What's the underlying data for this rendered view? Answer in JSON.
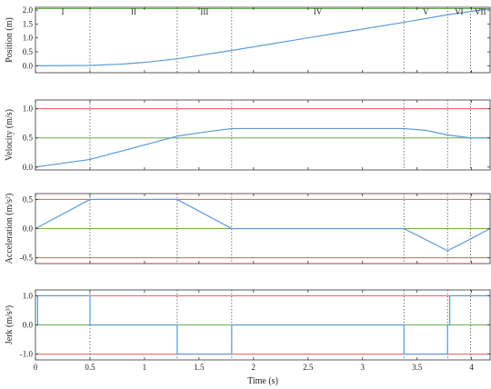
{
  "colors": {
    "series": "#5b9bd5",
    "limit": "#e8595a",
    "reference": "#6ab04c",
    "axis": "#333333",
    "phase_line": "#555555"
  },
  "chart_data": {
    "type": "line",
    "xlabel": "Time (s)",
    "xlim": [
      0,
      4.17
    ],
    "xticks": [
      0,
      0.5,
      1,
      1.5,
      2,
      2.5,
      3,
      3.5,
      4
    ],
    "xtick_labels": [
      "0",
      "0.5",
      "1",
      "1.5",
      "2",
      "2.5",
      "3",
      "3.5",
      "4"
    ],
    "phase_boundaries": [
      0.5,
      1.3,
      1.8,
      3.38,
      3.78,
      3.99
    ],
    "phases": [
      "I",
      "II",
      "III",
      "IV",
      "V",
      "VI",
      "VII"
    ],
    "panels": [
      {
        "ylabel": "Position (m)",
        "ylim": [
          -0.25,
          2.1
        ],
        "yticks": [
          0,
          0.5,
          1,
          1.5,
          2
        ],
        "ytick_labels": [
          "0.0",
          "0.5",
          "1.0",
          "1.5",
          "2.0"
        ],
        "hlines": [
          {
            "y": 2.05,
            "kind": "reference"
          }
        ],
        "series": [
          {
            "x": [
              0,
              0.5,
              0.8,
              1.0,
              1.3,
              1.8,
              2.5,
              3.38,
              3.78,
              3.99,
              4.17
            ],
            "y": [
              0,
              0.01,
              0.06,
              0.12,
              0.25,
              0.55,
              1.0,
              1.56,
              1.83,
              1.95,
              2.05
            ]
          }
        ]
      },
      {
        "ylabel": "Velocity (m/s)",
        "ylim": [
          -0.05,
          1.15
        ],
        "yticks": [
          0,
          0.5,
          1
        ],
        "ytick_labels": [
          "0.0",
          "0.5",
          "1.0"
        ],
        "hlines": [
          {
            "y": 1.0,
            "kind": "limit"
          },
          {
            "y": 0.5,
            "kind": "reference"
          }
        ],
        "series": [
          {
            "x": [
              0,
              0.5,
              1.3,
              1.55,
              1.8,
              3.38,
              3.58,
              3.78,
              3.99,
              4.17
            ],
            "y": [
              0,
              0.13,
              0.53,
              0.6,
              0.66,
              0.66,
              0.63,
              0.55,
              0.5,
              0.5
            ]
          }
        ]
      },
      {
        "ylabel": "Acceleration (m/s²)",
        "ylim": [
          -0.6,
          0.6
        ],
        "yticks": [
          -0.5,
          0,
          0.5
        ],
        "ytick_labels": [
          "-0.5",
          "0.0",
          "0.5"
        ],
        "hlines": [
          {
            "y": 0.5,
            "kind": "limit"
          },
          {
            "y": -0.5,
            "kind": "limit"
          },
          {
            "y": 0,
            "kind": "reference"
          }
        ],
        "series": [
          {
            "x": [
              0,
              0.5,
              1.3,
              1.8,
              3.38,
              3.78,
              3.99,
              4.17
            ],
            "y": [
              0,
              0.5,
              0.5,
              0,
              0,
              -0.38,
              -0.18,
              0
            ]
          }
        ]
      },
      {
        "ylabel": "Jerk (m/s³)",
        "ylim": [
          -1.2,
          1.2
        ],
        "yticks": [
          -1,
          0,
          1
        ],
        "ytick_labels": [
          "-1.0",
          "0.0",
          "1.0"
        ],
        "hlines": [
          {
            "y": 1.0,
            "kind": "limit"
          },
          {
            "y": -1.0,
            "kind": "limit"
          },
          {
            "y": 0,
            "kind": "reference"
          }
        ],
        "series": [
          {
            "x": [
              0,
              0.02,
              0.02,
              0.5,
              0.5,
              1.3,
              1.3,
              1.8,
              1.8,
              3.38,
              3.38,
              3.78,
              3.78,
              3.8,
              3.8,
              4.17
            ],
            "y": [
              0,
              0,
              1,
              1,
              0,
              0,
              -1,
              -1,
              0,
              0,
              -1,
              -1,
              0,
              0,
              1,
              1
            ]
          }
        ]
      }
    ]
  }
}
